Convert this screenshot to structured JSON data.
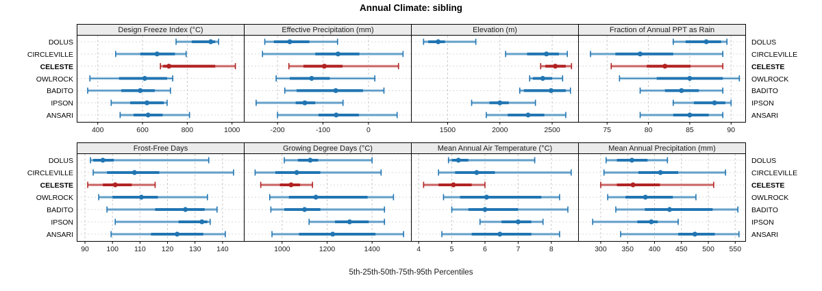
{
  "title": "Annual Climate: sibling",
  "caption": "5th-25th-50th-75th-95th Percentiles",
  "row_labels": [
    "DOLUS",
    "CIRCLEVILLE",
    "CELESTE",
    "OWLROCK",
    "BADITO",
    "IPSON",
    "ANSARI"
  ],
  "highlighted_row": "CELESTE",
  "colors": {
    "blue": "#2175b2",
    "blue_light": "#a9cbe2",
    "red": "#b22222",
    "red_light": "#e2a8a8",
    "grid": "#c9c9c9",
    "grid_h": "#d8d8d8",
    "header_bg": "#ebebeb",
    "border": "#000000"
  },
  "chart_data": {
    "type": "pointrange",
    "orientation": "horizontal",
    "percentiles": [
      5,
      25,
      50,
      75,
      95
    ],
    "grid_layout": "2 rows x 4 columns, shared site axis",
    "sites": [
      "DOLUS",
      "CIRCLEVILLE",
      "CELESTE",
      "OWLROCK",
      "BADITO",
      "IPSON",
      "ANSARI"
    ],
    "panels": [
      {
        "title": "Design Freeze Index (°C)",
        "row": 0,
        "col": 0,
        "xlim": [
          306,
          1056
        ],
        "ticks": [
          400,
          600,
          800,
          1000
        ],
        "tick_labels": [
          "400",
          "600",
          "800",
          "1000"
        ],
        "values": [
          [
            750,
            820,
            905,
            925,
            940
          ],
          [
            480,
            590,
            665,
            745,
            795
          ],
          [
            680,
            692,
            718,
            925,
            1015
          ],
          [
            365,
            495,
            610,
            710,
            735
          ],
          [
            355,
            505,
            590,
            655,
            725
          ],
          [
            460,
            545,
            620,
            695,
            710
          ],
          [
            500,
            560,
            625,
            690,
            810
          ]
        ]
      },
      {
        "title": "Effective Precipitation (mm)",
        "row": 0,
        "col": 1,
        "xlim": [
          -274,
          95
        ],
        "ticks": [
          -200,
          -100,
          0
        ],
        "tick_labels": [
          "-200",
          "-100",
          "0"
        ],
        "values": [
          [
            -228,
            -208,
            -173,
            -130,
            -68
          ],
          [
            -233,
            -117,
            -67,
            -20,
            76
          ],
          [
            -175,
            -143,
            -97,
            -57,
            66
          ],
          [
            -203,
            -173,
            -125,
            -85,
            14
          ],
          [
            -184,
            -158,
            -72,
            -12,
            34
          ],
          [
            -247,
            -160,
            -140,
            -117,
            -56
          ],
          [
            -200,
            -110,
            -71,
            -21,
            63
          ]
        ]
      },
      {
        "title": "Elevation (m)",
        "row": 0,
        "col": 2,
        "xlim": [
          1150,
          2755
        ],
        "ticks": [
          1500,
          2000,
          2500
        ],
        "tick_labels": [
          "1500",
          "2000",
          "2500"
        ],
        "values": [
          [
            1270,
            1315,
            1410,
            1475,
            1770
          ],
          [
            2055,
            2260,
            2445,
            2565,
            2645
          ],
          [
            2390,
            2435,
            2530,
            2630,
            2685
          ],
          [
            2285,
            2315,
            2410,
            2500,
            2600
          ],
          [
            2190,
            2230,
            2490,
            2630,
            2675
          ],
          [
            1730,
            1900,
            2000,
            2085,
            2340
          ],
          [
            1870,
            2075,
            2270,
            2425,
            2630
          ]
        ]
      },
      {
        "title": "Fraction of Annual PPT as Rain",
        "row": 0,
        "col": 3,
        "xlim": [
          71.5,
          91.8
        ],
        "ticks": [
          75,
          80,
          85,
          90
        ],
        "tick_labels": [
          "75",
          "80",
          "85",
          "90"
        ],
        "values": [
          [
            83,
            84.5,
            87,
            88.8,
            89.5
          ],
          [
            73,
            76,
            79,
            83,
            89
          ],
          [
            75.5,
            79.8,
            82,
            85.1,
            89
          ],
          [
            76.5,
            81,
            85,
            89,
            91
          ],
          [
            79,
            82,
            84,
            86.1,
            89
          ],
          [
            83,
            85.5,
            88,
            89.3,
            90
          ],
          [
            79,
            83,
            85,
            87.3,
            89
          ]
        ]
      },
      {
        "title": "Frost-Free Days",
        "row": 1,
        "col": 0,
        "xlim": [
          87,
          148
        ],
        "ticks": [
          90,
          100,
          110,
          120,
          130,
          140
        ],
        "tick_labels": [
          "90",
          "100",
          "110",
          "120",
          "130",
          "140"
        ],
        "values": [
          [
            92,
            93,
            96.5,
            100.5,
            135
          ],
          [
            93,
            98,
            108,
            117,
            144
          ],
          [
            91,
            96.5,
            101,
            107,
            115.5
          ],
          [
            95,
            100,
            110.5,
            116.5,
            134.5
          ],
          [
            98,
            115.5,
            126.5,
            133.5,
            138
          ],
          [
            101,
            124,
            132.5,
            134.5,
            135.5
          ],
          [
            99.5,
            114,
            123.5,
            133,
            141
          ]
        ]
      },
      {
        "title": "Growing Degree Days (°C)",
        "row": 1,
        "col": 1,
        "xlim": [
          830,
          1576
        ],
        "ticks": [
          1000,
          1200,
          1400
        ],
        "tick_labels": [
          "1000",
          "1200",
          "1400"
        ],
        "values": [
          [
            1010,
            1070,
            1125,
            1160,
            1400
          ],
          [
            880,
            970,
            1065,
            1170,
            1440
          ],
          [
            905,
            990,
            1040,
            1080,
            1135
          ],
          [
            945,
            1030,
            1150,
            1380,
            1495
          ],
          [
            950,
            1010,
            1100,
            1170,
            1455
          ],
          [
            1120,
            1235,
            1300,
            1385,
            1455
          ],
          [
            955,
            1075,
            1225,
            1415,
            1540
          ]
        ]
      },
      {
        "title": "Mean Annual Air Temperature (°C)",
        "row": 1,
        "col": 2,
        "xlim": [
          3.77,
          8.83
        ],
        "ticks": [
          4,
          5,
          6,
          7,
          8
        ],
        "tick_labels": [
          "4",
          "5",
          "6",
          "7",
          "8"
        ],
        "values": [
          [
            4.9,
            5.0,
            5.2,
            5.5,
            7.5
          ],
          [
            4.6,
            5.1,
            5.75,
            6.3,
            8.6
          ],
          [
            4.15,
            4.6,
            5.05,
            5.6,
            6.0
          ],
          [
            4.75,
            5.25,
            6.05,
            7.7,
            8.25
          ],
          [
            5.0,
            5.5,
            6.0,
            7.0,
            8.5
          ],
          [
            5.85,
            6.5,
            7.0,
            7.4,
            7.75
          ],
          [
            4.7,
            5.6,
            6.45,
            7.4,
            8.25
          ]
        ]
      },
      {
        "title": "Mean Annual Precipitation (mm)",
        "row": 1,
        "col": 3,
        "xlim": [
          258,
          570
        ],
        "ticks": [
          300,
          350,
          400,
          450,
          500,
          550
        ],
        "tick_labels": [
          "300",
          "350",
          "400",
          "450",
          "500",
          "550"
        ],
        "values": [
          [
            310,
            330,
            358,
            387,
            424
          ],
          [
            306,
            370,
            411,
            444,
            532
          ],
          [
            300,
            330,
            360,
            410,
            510
          ],
          [
            313,
            346,
            383,
            434,
            477
          ],
          [
            328,
            382,
            428,
            508,
            555
          ],
          [
            285,
            368,
            394,
            406,
            444
          ],
          [
            337,
            444,
            475,
            512,
            557
          ]
        ]
      }
    ]
  }
}
